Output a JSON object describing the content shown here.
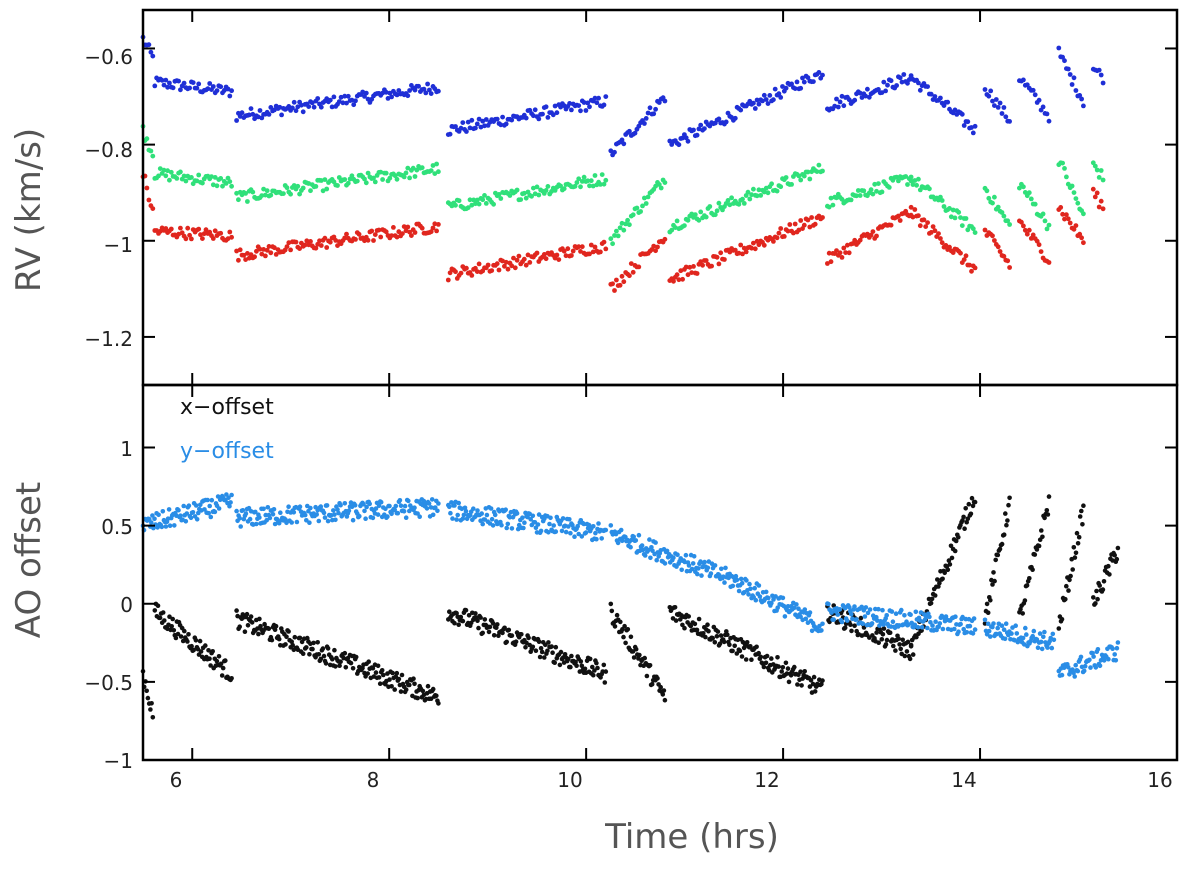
{
  "chart_data": [
    {
      "panel": "top",
      "type": "scatter",
      "ylabel": "RV (km/s)",
      "xlabel": "",
      "xlim": [
        5.5,
        16
      ],
      "ylim": [
        -1.3,
        -0.52
      ],
      "y_inverted": true,
      "xticks": [
        6,
        8,
        10,
        12,
        14,
        16
      ],
      "yticks": [
        -0.6,
        -0.8,
        -1,
        -1.2
      ],
      "ytick_labels": [
        "−0.6",
        "−0.8",
        "−1",
        "−1.2"
      ],
      "series": [
        {
          "name": "blue",
          "color": "#1f2fd6",
          "segments": [
            {
              "x0": 5.5,
              "x1": 5.6,
              "y0": -0.58,
              "y1": -0.62
            },
            {
              "x0": 5.62,
              "x1": 6.4,
              "y0": -0.67,
              "y1": -0.69
            },
            {
              "x0": 6.45,
              "x1": 8.5,
              "y0": -0.74,
              "y1": -0.68
            },
            {
              "x0": 8.6,
              "x1": 10.2,
              "y0": -0.77,
              "y1": -0.71
            },
            {
              "x0": 10.25,
              "x1": 10.8,
              "y0": -0.82,
              "y1": -0.7
            },
            {
              "x0": 10.85,
              "x1": 12.4,
              "y0": -0.8,
              "y1": -0.65
            },
            {
              "x0": 12.45,
              "x1": 13.3,
              "y0": -0.72,
              "y1": -0.66
            },
            {
              "x0": 13.3,
              "x1": 13.95,
              "y0": -0.66,
              "y1": -0.77
            },
            {
              "x0": 14.05,
              "x1": 14.3,
              "y0": -0.68,
              "y1": -0.75
            },
            {
              "x0": 14.4,
              "x1": 14.7,
              "y0": -0.66,
              "y1": -0.74
            },
            {
              "x0": 14.8,
              "x1": 15.05,
              "y0": -0.61,
              "y1": -0.71
            },
            {
              "x0": 15.15,
              "x1": 15.25,
              "y0": -0.64,
              "y1": -0.66
            }
          ]
        },
        {
          "name": "green",
          "color": "#30e07a",
          "segments": [
            {
              "x0": 5.5,
              "x1": 5.6,
              "y0": -0.77,
              "y1": -0.82
            },
            {
              "x0": 5.62,
              "x1": 6.4,
              "y0": -0.86,
              "y1": -0.88
            },
            {
              "x0": 6.45,
              "x1": 8.5,
              "y0": -0.91,
              "y1": -0.85
            },
            {
              "x0": 8.6,
              "x1": 10.2,
              "y0": -0.93,
              "y1": -0.87
            },
            {
              "x0": 10.25,
              "x1": 10.8,
              "y0": -1.0,
              "y1": -0.87
            },
            {
              "x0": 10.85,
              "x1": 12.4,
              "y0": -0.97,
              "y1": -0.85
            },
            {
              "x0": 12.45,
              "x1": 13.3,
              "y0": -0.92,
              "y1": -0.87
            },
            {
              "x0": 13.3,
              "x1": 13.95,
              "y0": -0.87,
              "y1": -0.98
            },
            {
              "x0": 14.05,
              "x1": 14.3,
              "y0": -0.89,
              "y1": -0.97
            },
            {
              "x0": 14.4,
              "x1": 14.7,
              "y0": -0.88,
              "y1": -0.97
            },
            {
              "x0": 14.8,
              "x1": 15.05,
              "y0": -0.83,
              "y1": -0.95
            },
            {
              "x0": 15.15,
              "x1": 15.25,
              "y0": -0.84,
              "y1": -0.87
            }
          ]
        },
        {
          "name": "red",
          "color": "#e0261e",
          "segments": [
            {
              "x0": 5.5,
              "x1": 5.6,
              "y0": -0.86,
              "y1": -0.94
            },
            {
              "x0": 5.62,
              "x1": 6.4,
              "y0": -0.98,
              "y1": -0.99
            },
            {
              "x0": 6.45,
              "x1": 8.5,
              "y0": -1.03,
              "y1": -0.97
            },
            {
              "x0": 8.6,
              "x1": 10.2,
              "y0": -1.07,
              "y1": -1.01
            },
            {
              "x0": 10.25,
              "x1": 10.8,
              "y0": -1.1,
              "y1": -0.99
            },
            {
              "x0": 10.85,
              "x1": 12.4,
              "y0": -1.08,
              "y1": -0.95
            },
            {
              "x0": 12.45,
              "x1": 13.3,
              "y0": -1.04,
              "y1": -0.94
            },
            {
              "x0": 13.3,
              "x1": 13.95,
              "y0": -0.94,
              "y1": -1.06
            },
            {
              "x0": 14.05,
              "x1": 14.3,
              "y0": -0.98,
              "y1": -1.05
            },
            {
              "x0": 14.4,
              "x1": 14.7,
              "y0": -0.96,
              "y1": -1.04
            },
            {
              "x0": 14.8,
              "x1": 15.05,
              "y0": -0.93,
              "y1": -1.0
            },
            {
              "x0": 15.15,
              "x1": 15.25,
              "y0": -0.9,
              "y1": -0.93
            }
          ]
        }
      ]
    },
    {
      "panel": "bottom",
      "type": "scatter",
      "ylabel": "AO offset",
      "xlabel": "Time (hrs)",
      "xlim": [
        5.5,
        16
      ],
      "ylim": [
        -1,
        1.4
      ],
      "xticks": [
        6,
        8,
        10,
        12,
        14,
        16
      ],
      "xtick_labels": [
        "6",
        "8",
        "10",
        "12",
        "14",
        "16"
      ],
      "yticks": [
        1,
        0.5,
        0,
        -0.5,
        -1
      ],
      "ytick_labels": [
        "1",
        "0.5",
        "0",
        "−0.5",
        "−1"
      ],
      "legend": [
        {
          "label": "x−offset",
          "color": "#111111"
        },
        {
          "label": "y−offset",
          "color": "#2a8de6"
        }
      ],
      "series": [
        {
          "name": "x−offset",
          "color": "#111111",
          "segments": [
            {
              "x0": 5.5,
              "x1": 5.6,
              "y0": -0.45,
              "y1": -0.7
            },
            {
              "x0": 5.62,
              "x1": 6.4,
              "y0": -0.05,
              "y1": -0.45
            },
            {
              "x0": 6.45,
              "x1": 8.5,
              "y0": -0.1,
              "y1": -0.6
            },
            {
              "x0": 8.6,
              "x1": 10.2,
              "y0": -0.05,
              "y1": -0.45
            },
            {
              "x0": 10.25,
              "x1": 10.8,
              "y0": -0.05,
              "y1": -0.6
            },
            {
              "x0": 10.85,
              "x1": 12.4,
              "y0": -0.05,
              "y1": -0.55
            },
            {
              "x0": 12.45,
              "x1": 13.3,
              "y0": -0.05,
              "y1": -0.3
            },
            {
              "x0": 13.3,
              "x1": 13.95,
              "y0": -0.3,
              "y1": 0.7
            },
            {
              "x0": 14.05,
              "x1": 14.3,
              "y0": -0.1,
              "y1": 0.65
            },
            {
              "x0": 14.4,
              "x1": 14.7,
              "y0": -0.1,
              "y1": 0.65
            },
            {
              "x0": 14.8,
              "x1": 15.05,
              "y0": -0.15,
              "y1": 0.6
            },
            {
              "x0": 15.15,
              "x1": 15.4,
              "y0": 0.0,
              "y1": 0.35
            }
          ]
        },
        {
          "name": "y−offset",
          "color": "#2a8de6",
          "segments": [
            {
              "x0": 5.5,
              "x1": 6.4,
              "y0": 0.5,
              "y1": 0.65
            },
            {
              "x0": 6.45,
              "x1": 8.5,
              "y0": 0.55,
              "y1": 0.62
            },
            {
              "x0": 8.6,
              "x1": 10.2,
              "y0": 0.6,
              "y1": 0.45
            },
            {
              "x0": 10.25,
              "x1": 11.5,
              "y0": 0.45,
              "y1": 0.15
            },
            {
              "x0": 11.5,
              "x1": 12.4,
              "y0": 0.15,
              "y1": -0.15
            },
            {
              "x0": 12.45,
              "x1": 13.95,
              "y0": -0.05,
              "y1": -0.15
            },
            {
              "x0": 14.05,
              "x1": 14.75,
              "y0": -0.15,
              "y1": -0.25
            },
            {
              "x0": 14.8,
              "x1": 15.4,
              "y0": -0.45,
              "y1": -0.3
            }
          ]
        }
      ]
    }
  ]
}
